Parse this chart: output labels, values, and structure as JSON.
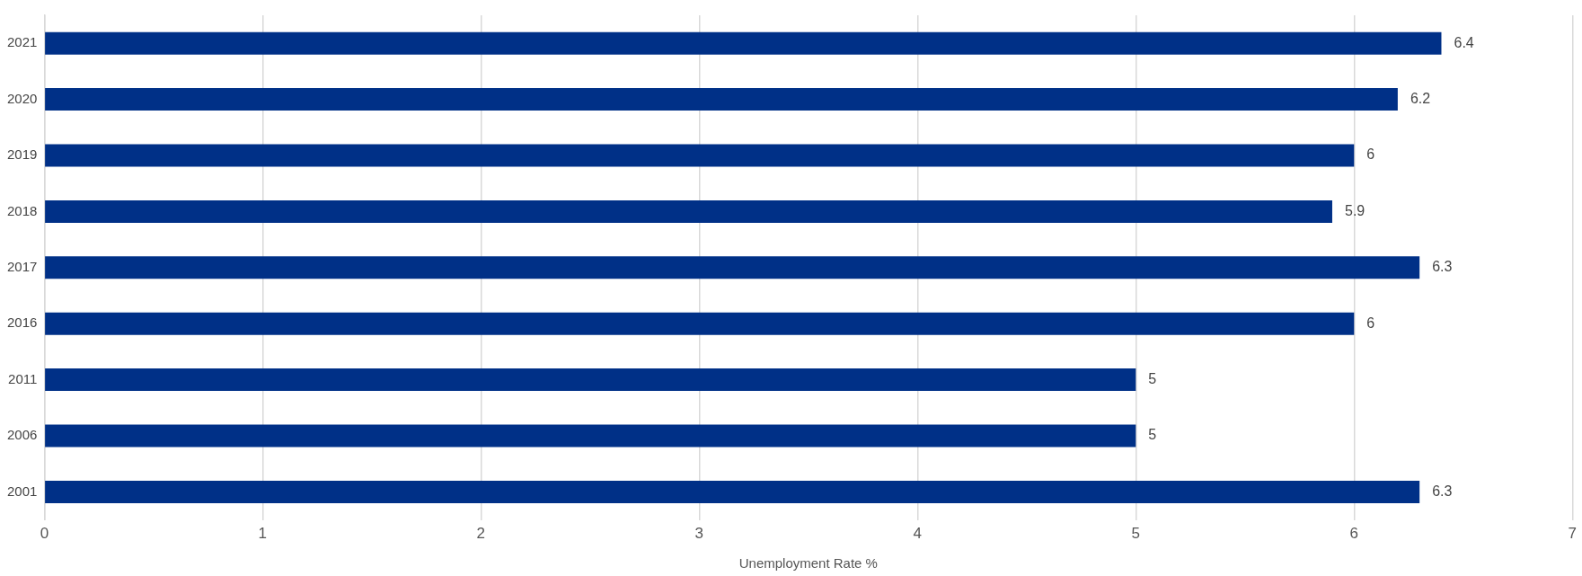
{
  "chart_data": {
    "type": "bar",
    "orientation": "horizontal",
    "xlabel": "Unemployment Rate %",
    "categories": [
      "2021",
      "2020",
      "2019",
      "2018",
      "2017",
      "2016",
      "2011",
      "2006",
      "2001"
    ],
    "values": [
      6.4,
      6.2,
      6,
      5.9,
      6.3,
      6,
      5,
      5,
      6.3
    ],
    "color": "#003087",
    "xlim": [
      0,
      7
    ],
    "xticks": [
      0,
      1,
      2,
      3,
      4,
      5,
      6,
      7
    ],
    "grid": "x",
    "data_labels": true,
    "legend": false
  }
}
